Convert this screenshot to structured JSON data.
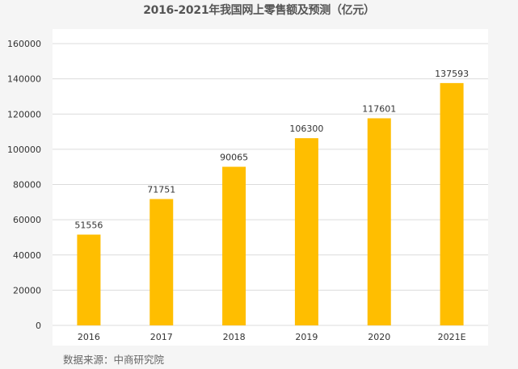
{
  "colors": {
    "bar": "#FFBE00",
    "grid": "#dcdcdc",
    "plot_bg": "#ffffff",
    "page_bg": "#f5f5f5"
  },
  "source": "数据来源：中商研究院",
  "chart_data": {
    "type": "bar",
    "title": "2016-2021年我国网上零售额及预测（亿元）",
    "categories": [
      "2016",
      "2017",
      "2018",
      "2019",
      "2020",
      "2021E"
    ],
    "values": [
      51556,
      71751,
      90065,
      106300,
      117601,
      137593
    ],
    "value_labels": [
      "51556",
      "71751",
      "90065",
      "106300",
      "117601",
      "137593"
    ],
    "y_ticks": [
      0,
      20000,
      40000,
      60000,
      80000,
      100000,
      120000,
      140000,
      160000
    ],
    "ylim": [
      0,
      160000
    ],
    "grid": true,
    "legend": "none",
    "xlabel": "",
    "ylabel": ""
  }
}
